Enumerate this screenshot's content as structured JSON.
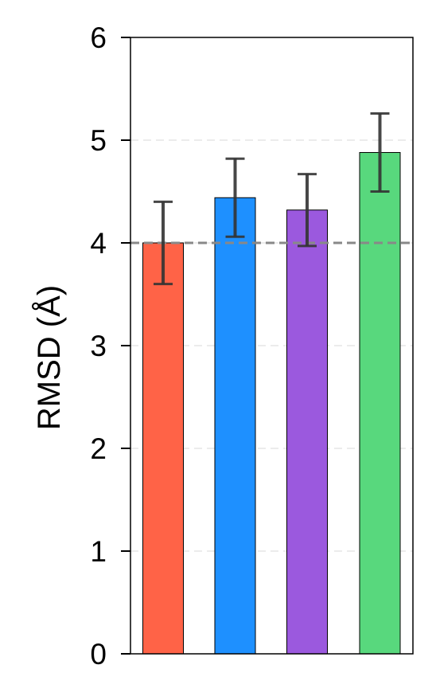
{
  "chart_data": {
    "type": "bar",
    "title": "",
    "xlabel": "",
    "ylabel": "RMSD (Å)",
    "ylim": [
      0,
      6
    ],
    "yticks": [
      "0",
      "1",
      "2",
      "3",
      "4",
      "5",
      "6"
    ],
    "grid": "horizontal dashed",
    "reference_line": 4.0,
    "categories": [
      "",
      "",
      "",
      ""
    ],
    "values": [
      4.0,
      4.44,
      4.32,
      4.88
    ],
    "errors": [
      0.4,
      0.38,
      0.35,
      0.38
    ],
    "colors": [
      "#FF6347",
      "#1E90FF",
      "#9B59DE",
      "#58D87D"
    ],
    "reference_line_color": "#888888",
    "errorbar_color": "#333333"
  }
}
